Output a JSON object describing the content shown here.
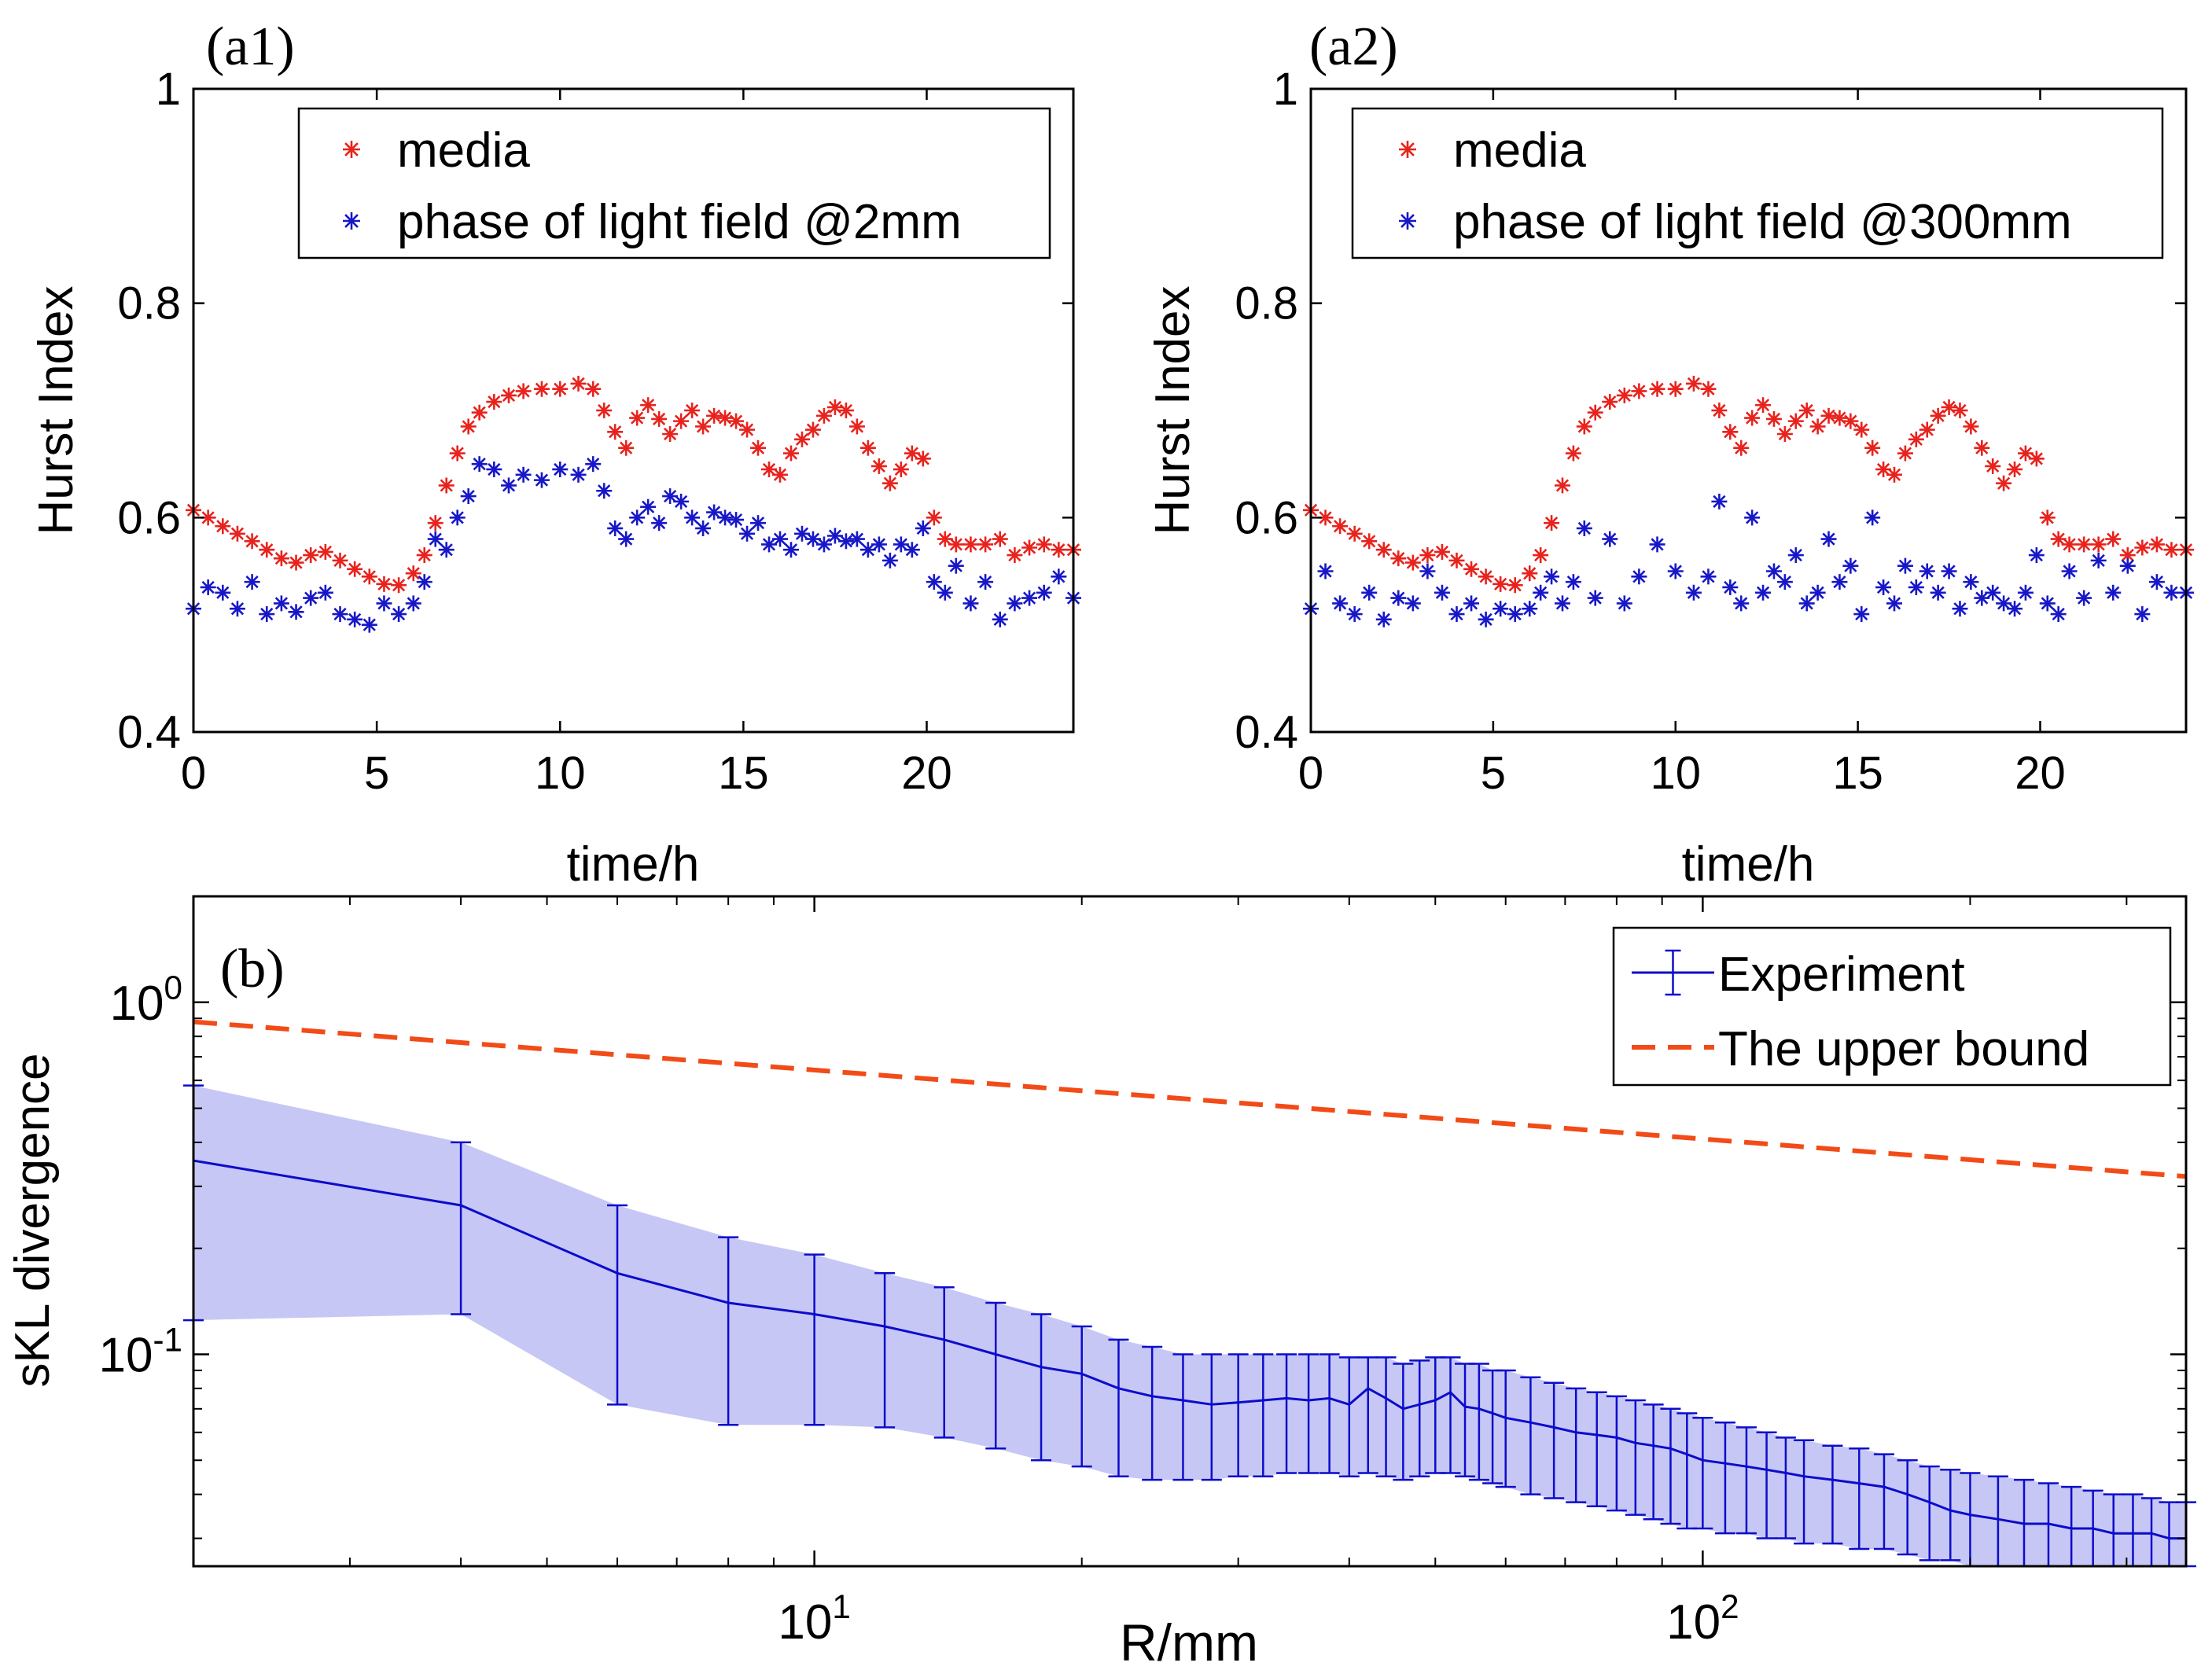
{
  "colors": {
    "media": "#e8221c",
    "phase": "#1717c8",
    "experiment": "#0c0ccc",
    "band": "#c7c7f5",
    "bound": "#f24b17",
    "axis": "#000000"
  },
  "chart_data": [
    {
      "id": "a1",
      "type": "scatter",
      "panel_label": "(a1)",
      "xlabel": "time/h",
      "ylabel": "Hurst Index",
      "xlim": [
        0,
        24
      ],
      "ylim": [
        0.4,
        1
      ],
      "xticks": [
        0,
        5,
        10,
        15,
        20
      ],
      "yticks": [
        0.4,
        0.6,
        0.8,
        1
      ],
      "ytick_labels": [
        "0.4",
        "0.6",
        "0.8",
        "1"
      ],
      "legend_position": "top-right",
      "series": [
        {
          "name": "media",
          "marker": "*",
          "color": "#e8221c",
          "x": [
            0.0,
            0.4,
            0.8,
            1.2,
            1.6,
            2.0,
            2.4,
            2.8,
            3.2,
            3.6,
            4.0,
            4.4,
            4.8,
            5.2,
            5.6,
            6.0,
            6.3,
            6.6,
            6.9,
            7.2,
            7.5,
            7.8,
            8.2,
            8.6,
            9.0,
            9.5,
            10.0,
            10.5,
            10.9,
            11.2,
            11.5,
            11.8,
            12.1,
            12.4,
            12.7,
            13.0,
            13.3,
            13.6,
            13.9,
            14.2,
            14.5,
            14.8,
            15.1,
            15.4,
            15.7,
            16.0,
            16.3,
            16.6,
            16.9,
            17.2,
            17.5,
            17.8,
            18.1,
            18.4,
            18.7,
            19.0,
            19.3,
            19.6,
            19.9,
            20.2,
            20.5,
            20.8,
            21.2,
            21.6,
            22.0,
            22.4,
            22.8,
            23.2,
            23.6,
            24.0
          ],
          "y": [
            0.607,
            0.6,
            0.592,
            0.585,
            0.578,
            0.57,
            0.562,
            0.558,
            0.565,
            0.568,
            0.56,
            0.552,
            0.545,
            0.538,
            0.537,
            0.548,
            0.565,
            0.595,
            0.63,
            0.66,
            0.685,
            0.698,
            0.708,
            0.714,
            0.718,
            0.72,
            0.72,
            0.725,
            0.72,
            0.7,
            0.68,
            0.665,
            0.693,
            0.705,
            0.692,
            0.678,
            0.69,
            0.7,
            0.685,
            0.695,
            0.693,
            0.69,
            0.682,
            0.665,
            0.645,
            0.64,
            0.66,
            0.673,
            0.682,
            0.695,
            0.703,
            0.7,
            0.685,
            0.665,
            0.648,
            0.632,
            0.645,
            0.66,
            0.655,
            0.6,
            0.58,
            0.575,
            0.575,
            0.575,
            0.58,
            0.565,
            0.572,
            0.575,
            0.57,
            0.57
          ]
        },
        {
          "name": "phase of light field @2mm",
          "marker": "*",
          "color": "#1717c8",
          "x": [
            0.0,
            0.4,
            0.8,
            1.2,
            1.6,
            2.0,
            2.4,
            2.8,
            3.2,
            3.6,
            4.0,
            4.4,
            4.8,
            5.2,
            5.6,
            6.0,
            6.3,
            6.6,
            6.9,
            7.2,
            7.5,
            7.8,
            8.2,
            8.6,
            9.0,
            9.5,
            10.0,
            10.5,
            10.9,
            11.2,
            11.5,
            11.8,
            12.1,
            12.4,
            12.7,
            13.0,
            13.3,
            13.6,
            13.9,
            14.2,
            14.5,
            14.8,
            15.1,
            15.4,
            15.7,
            16.0,
            16.3,
            16.6,
            16.9,
            17.2,
            17.5,
            17.8,
            18.1,
            18.4,
            18.7,
            19.0,
            19.3,
            19.6,
            19.9,
            20.2,
            20.5,
            20.8,
            21.2,
            21.6,
            22.0,
            22.4,
            22.8,
            23.2,
            23.6,
            24.0
          ],
          "y": [
            0.515,
            0.535,
            0.53,
            0.515,
            0.54,
            0.51,
            0.52,
            0.512,
            0.525,
            0.53,
            0.51,
            0.505,
            0.5,
            0.52,
            0.51,
            0.52,
            0.54,
            0.58,
            0.57,
            0.6,
            0.62,
            0.65,
            0.645,
            0.63,
            0.64,
            0.635,
            0.645,
            0.64,
            0.65,
            0.625,
            0.59,
            0.58,
            0.6,
            0.61,
            0.595,
            0.62,
            0.615,
            0.6,
            0.59,
            0.605,
            0.6,
            0.598,
            0.585,
            0.595,
            0.575,
            0.58,
            0.57,
            0.585,
            0.58,
            0.575,
            0.583,
            0.578,
            0.58,
            0.57,
            0.575,
            0.56,
            0.575,
            0.57,
            0.59,
            0.54,
            0.53,
            0.555,
            0.52,
            0.54,
            0.505,
            0.52,
            0.525,
            0.53,
            0.545,
            0.525
          ]
        }
      ]
    },
    {
      "id": "a2",
      "type": "scatter",
      "panel_label": "(a2)",
      "xlabel": "time/h",
      "ylabel": "Hurst Index",
      "xlim": [
        0,
        24
      ],
      "ylim": [
        0.4,
        1
      ],
      "xticks": [
        0,
        5,
        10,
        15,
        20
      ],
      "yticks": [
        0.4,
        0.6,
        0.8,
        1
      ],
      "ytick_labels": [
        "0.4",
        "0.6",
        "0.8",
        "1"
      ],
      "legend_position": "top-right",
      "series": [
        {
          "name": "media",
          "marker": "*",
          "color": "#e8221c",
          "x": [
            0.0,
            0.4,
            0.8,
            1.2,
            1.6,
            2.0,
            2.4,
            2.8,
            3.2,
            3.6,
            4.0,
            4.4,
            4.8,
            5.2,
            5.6,
            6.0,
            6.3,
            6.6,
            6.9,
            7.2,
            7.5,
            7.8,
            8.2,
            8.6,
            9.0,
            9.5,
            10.0,
            10.5,
            10.9,
            11.2,
            11.5,
            11.8,
            12.1,
            12.4,
            12.7,
            13.0,
            13.3,
            13.6,
            13.9,
            14.2,
            14.5,
            14.8,
            15.1,
            15.4,
            15.7,
            16.0,
            16.3,
            16.6,
            16.9,
            17.2,
            17.5,
            17.8,
            18.1,
            18.4,
            18.7,
            19.0,
            19.3,
            19.6,
            19.9,
            20.2,
            20.5,
            20.8,
            21.2,
            21.6,
            22.0,
            22.4,
            22.8,
            23.2,
            23.6,
            24.0
          ],
          "y": [
            0.607,
            0.6,
            0.592,
            0.585,
            0.578,
            0.57,
            0.562,
            0.558,
            0.565,
            0.568,
            0.56,
            0.552,
            0.545,
            0.538,
            0.537,
            0.548,
            0.565,
            0.595,
            0.63,
            0.66,
            0.685,
            0.698,
            0.708,
            0.714,
            0.718,
            0.72,
            0.72,
            0.725,
            0.72,
            0.7,
            0.68,
            0.665,
            0.693,
            0.705,
            0.692,
            0.678,
            0.69,
            0.7,
            0.685,
            0.695,
            0.693,
            0.69,
            0.682,
            0.665,
            0.645,
            0.64,
            0.66,
            0.673,
            0.682,
            0.695,
            0.703,
            0.7,
            0.685,
            0.665,
            0.648,
            0.632,
            0.645,
            0.66,
            0.655,
            0.6,
            0.58,
            0.575,
            0.575,
            0.575,
            0.58,
            0.565,
            0.572,
            0.575,
            0.57,
            0.57
          ]
        },
        {
          "name": "phase of light field @300mm",
          "marker": "*",
          "color": "#1717c8",
          "x": [
            0.0,
            0.4,
            0.8,
            1.2,
            1.6,
            2.0,
            2.4,
            2.8,
            3.2,
            3.6,
            4.0,
            4.4,
            4.8,
            5.2,
            5.6,
            6.0,
            6.3,
            6.6,
            6.9,
            7.2,
            7.5,
            7.8,
            8.2,
            8.6,
            9.0,
            9.5,
            10.0,
            10.5,
            10.9,
            11.2,
            11.5,
            11.8,
            12.1,
            12.4,
            12.7,
            13.0,
            13.3,
            13.6,
            13.9,
            14.2,
            14.5,
            14.8,
            15.1,
            15.4,
            15.7,
            16.0,
            16.3,
            16.6,
            16.9,
            17.2,
            17.5,
            17.8,
            18.1,
            18.4,
            18.7,
            19.0,
            19.3,
            19.6,
            19.9,
            20.2,
            20.5,
            20.8,
            21.2,
            21.6,
            22.0,
            22.4,
            22.8,
            23.2,
            23.6,
            24.0
          ],
          "y": [
            0.515,
            0.55,
            0.52,
            0.51,
            0.53,
            0.505,
            0.525,
            0.52,
            0.55,
            0.53,
            0.51,
            0.52,
            0.505,
            0.515,
            0.51,
            0.515,
            0.53,
            0.545,
            0.52,
            0.54,
            0.59,
            0.525,
            0.58,
            0.52,
            0.545,
            0.575,
            0.55,
            0.53,
            0.545,
            0.615,
            0.535,
            0.52,
            0.6,
            0.53,
            0.55,
            0.54,
            0.565,
            0.52,
            0.53,
            0.58,
            0.54,
            0.555,
            0.51,
            0.6,
            0.535,
            0.52,
            0.555,
            0.535,
            0.55,
            0.53,
            0.55,
            0.515,
            0.54,
            0.525,
            0.53,
            0.52,
            0.515,
            0.53,
            0.565,
            0.52,
            0.51,
            0.55,
            0.525,
            0.56,
            0.53,
            0.555,
            0.51,
            0.54,
            0.53,
            0.53
          ]
        }
      ]
    },
    {
      "id": "b",
      "type": "line",
      "panel_label": "(b)",
      "xlabel": "R/mm",
      "ylabel": "sKL divergence",
      "xscale": "log",
      "yscale": "log",
      "xlim": [
        2,
        350
      ],
      "ylim": [
        0.025,
        2
      ],
      "xticks": [
        10,
        100
      ],
      "xtick_labels": [
        {
          "base": "10",
          "exp": "1"
        },
        {
          "base": "10",
          "exp": "2"
        }
      ],
      "yticks": [
        0.1,
        1
      ],
      "ytick_labels": [
        {
          "base": "10",
          "exp": "-1"
        },
        {
          "base": "10",
          "exp": "0"
        }
      ],
      "legend_position": "top-right",
      "series": [
        {
          "name": "Experiment",
          "color": "#0c0ccc",
          "error_bars": true,
          "shaded_band": true,
          "x": [
            2,
            4,
            6,
            8,
            10,
            12,
            14,
            16,
            18,
            20,
            22,
            24,
            26,
            28,
            30,
            32,
            34,
            36,
            38,
            40,
            42,
            44,
            46,
            48,
            50,
            52,
            54,
            56,
            58,
            60,
            64,
            68,
            72,
            76,
            80,
            84,
            88,
            92,
            96,
            100,
            106,
            112,
            118,
            124,
            130,
            140,
            150,
            160,
            170,
            180,
            190,
            200,
            215,
            230,
            245,
            260,
            275,
            290,
            305,
            320,
            335,
            350
          ],
          "y": [
            0.355,
            0.265,
            0.17,
            0.14,
            0.13,
            0.12,
            0.11,
            0.1,
            0.092,
            0.088,
            0.08,
            0.076,
            0.074,
            0.072,
            0.073,
            0.074,
            0.075,
            0.074,
            0.075,
            0.072,
            0.08,
            0.075,
            0.07,
            0.072,
            0.074,
            0.078,
            0.071,
            0.07,
            0.068,
            0.066,
            0.064,
            0.062,
            0.06,
            0.059,
            0.058,
            0.056,
            0.055,
            0.054,
            0.052,
            0.05,
            0.049,
            0.048,
            0.047,
            0.046,
            0.045,
            0.044,
            0.043,
            0.042,
            0.04,
            0.038,
            0.036,
            0.035,
            0.034,
            0.033,
            0.033,
            0.032,
            0.032,
            0.031,
            0.031,
            0.031,
            0.03,
            0.03
          ],
          "lower": [
            0.125,
            0.13,
            0.072,
            0.063,
            0.063,
            0.062,
            0.058,
            0.054,
            0.05,
            0.048,
            0.045,
            0.044,
            0.044,
            0.044,
            0.045,
            0.045,
            0.046,
            0.046,
            0.046,
            0.045,
            0.046,
            0.045,
            0.044,
            0.045,
            0.046,
            0.046,
            0.045,
            0.044,
            0.043,
            0.042,
            0.04,
            0.039,
            0.038,
            0.037,
            0.036,
            0.035,
            0.034,
            0.033,
            0.032,
            0.032,
            0.031,
            0.031,
            0.03,
            0.03,
            0.029,
            0.029,
            0.028,
            0.028,
            0.027,
            0.026,
            0.026,
            0.025,
            0.025,
            0.025,
            0.025,
            0.025,
            0.025,
            0.025,
            0.025,
            0.025,
            0.025,
            0.025
          ],
          "upper": [
            0.58,
            0.4,
            0.265,
            0.215,
            0.192,
            0.17,
            0.155,
            0.14,
            0.13,
            0.12,
            0.11,
            0.105,
            0.1,
            0.1,
            0.1,
            0.1,
            0.1,
            0.1,
            0.1,
            0.098,
            0.098,
            0.098,
            0.094,
            0.096,
            0.098,
            0.098,
            0.094,
            0.094,
            0.09,
            0.09,
            0.086,
            0.083,
            0.08,
            0.078,
            0.076,
            0.074,
            0.072,
            0.07,
            0.068,
            0.066,
            0.064,
            0.062,
            0.06,
            0.058,
            0.057,
            0.055,
            0.054,
            0.052,
            0.05,
            0.048,
            0.047,
            0.046,
            0.045,
            0.044,
            0.043,
            0.042,
            0.041,
            0.04,
            0.04,
            0.039,
            0.038,
            0.038
          ]
        },
        {
          "name": "The upper bound",
          "color": "#f24b17",
          "dash": "dashed",
          "x": [
            2,
            350
          ],
          "y": [
            0.88,
            0.32
          ]
        }
      ]
    }
  ]
}
